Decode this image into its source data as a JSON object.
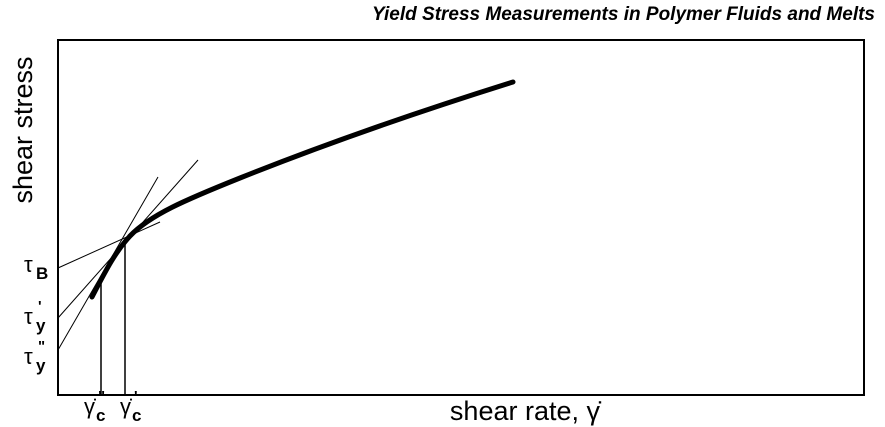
{
  "title": "Yield Stress Measurements in Polymer Fluids and Melts",
  "y_axis_label": "shear stress",
  "x_axis_label": "shear rate, γ̇",
  "y_labels": [
    {
      "symbol": "τ",
      "subscript": "B"
    },
    {
      "symbol": "τ",
      "subscript": "y",
      "superscript": "'"
    },
    {
      "symbol": "τ",
      "subscript": "y",
      "superscript": "\""
    }
  ],
  "x_labels": [
    {
      "symbol": "γ̇",
      "subscript": "c",
      "superscript": "\""
    },
    {
      "symbol": "γ̇",
      "subscript": "c",
      "superscript": "'"
    }
  ]
}
